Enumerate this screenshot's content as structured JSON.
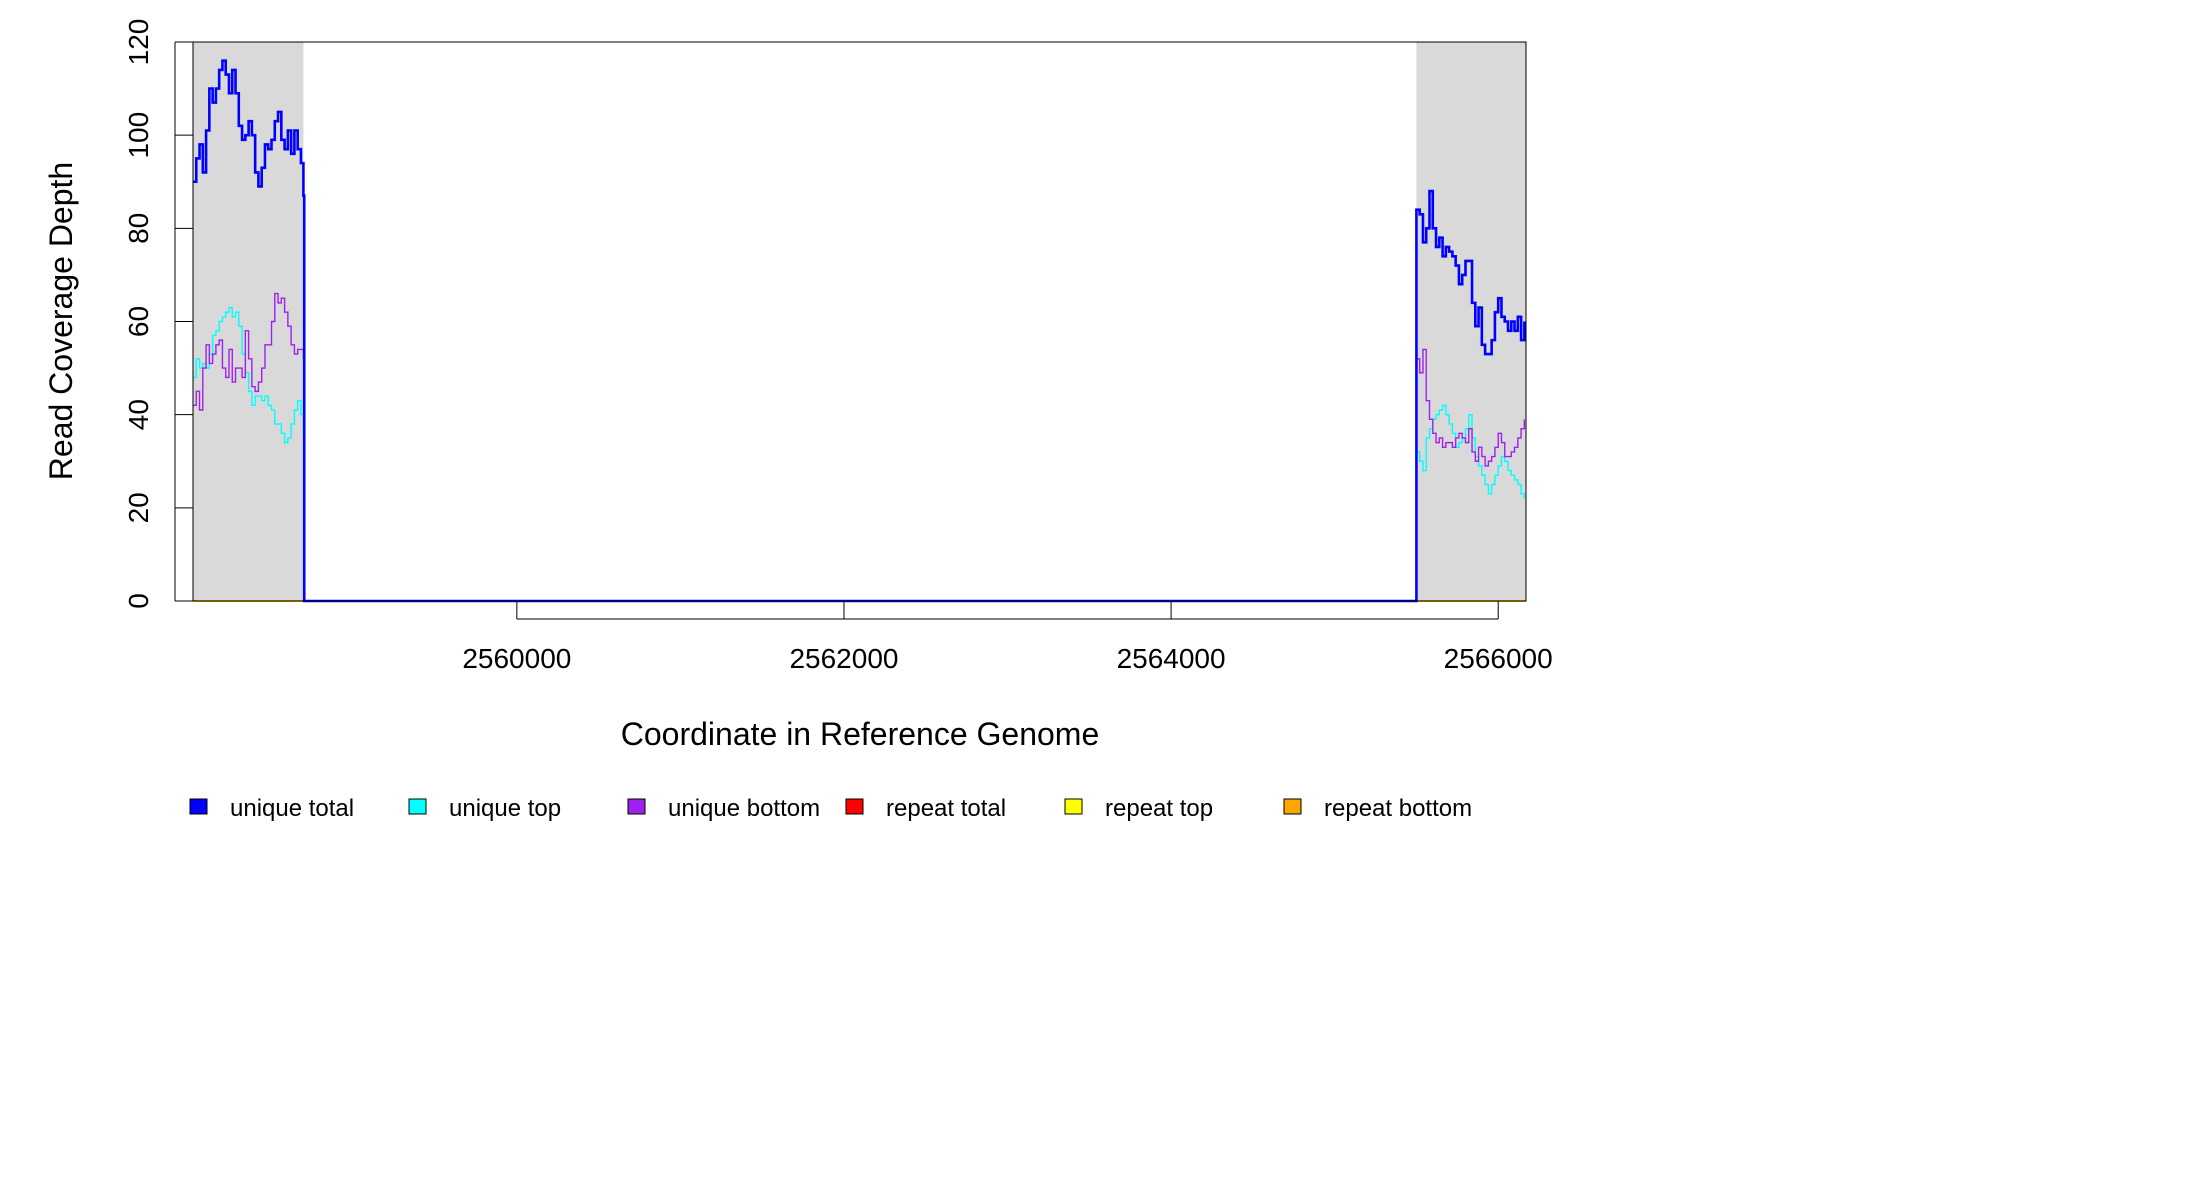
{
  "chart_data": {
    "type": "line",
    "title": "",
    "xlabel": "Coordinate in Reference Genome",
    "ylabel": "Read Coverage Depth",
    "xlim": [
      2558020,
      2566170
    ],
    "ylim": [
      0,
      120
    ],
    "x_ticks": [
      2560000,
      2562000,
      2564000,
      2566000
    ],
    "x_tick_labels": [
      "2560000",
      "2562000",
      "2564000",
      "2566000"
    ],
    "y_ticks": [
      0,
      20,
      40,
      60,
      80,
      100,
      120
    ],
    "y_tick_labels": [
      "0",
      "20",
      "40",
      "60",
      "80",
      "100",
      "120"
    ],
    "highlight_regions": [
      [
        2558020,
        2558695
      ],
      [
        2565500,
        2566170
      ]
    ],
    "highlight_color": "#d9d9d9",
    "series": [
      {
        "name": "unique total",
        "color": "#0000ff",
        "x": [
          2558020,
          2558040,
          2558060,
          2558080,
          2558100,
          2558120,
          2558140,
          2558160,
          2558180,
          2558200,
          2558220,
          2558240,
          2558260,
          2558280,
          2558300,
          2558320,
          2558340,
          2558360,
          2558380,
          2558400,
          2558420,
          2558440,
          2558460,
          2558480,
          2558500,
          2558520,
          2558540,
          2558560,
          2558580,
          2558600,
          2558620,
          2558640,
          2558660,
          2558680,
          2558695,
          2558700,
          2565490,
          2565500,
          2565520,
          2565540,
          2565560,
          2565580,
          2565600,
          2565620,
          2565640,
          2565660,
          2565680,
          2565700,
          2565720,
          2565740,
          2565760,
          2565780,
          2565800,
          2565820,
          2565840,
          2565860,
          2565880,
          2565900,
          2565920,
          2565940,
          2565960,
          2565980,
          2566000,
          2566020,
          2566040,
          2566060,
          2566080,
          2566100,
          2566120,
          2566140,
          2566160
        ],
        "values": [
          90,
          95,
          98,
          92,
          101,
          110,
          107,
          110,
          114,
          116,
          113,
          109,
          114,
          109,
          102,
          99,
          100,
          103,
          100,
          92,
          89,
          93,
          98,
          97,
          99,
          103,
          105,
          99,
          97,
          101,
          96,
          101,
          97,
          94,
          87,
          0,
          0,
          84,
          83,
          77,
          80,
          88,
          80,
          76,
          78,
          74,
          76,
          75,
          74,
          72,
          68,
          70,
          73,
          73,
          64,
          59,
          63,
          55,
          53,
          53,
          56,
          62,
          65,
          61,
          60,
          58,
          60,
          58,
          61,
          56,
          60
        ]
      },
      {
        "name": "unique top",
        "color": "#00ffff",
        "x": [
          2558020,
          2558040,
          2558060,
          2558080,
          2558100,
          2558120,
          2558140,
          2558160,
          2558180,
          2558200,
          2558220,
          2558240,
          2558260,
          2558280,
          2558300,
          2558320,
          2558340,
          2558360,
          2558380,
          2558400,
          2558420,
          2558440,
          2558460,
          2558480,
          2558500,
          2558520,
          2558540,
          2558560,
          2558580,
          2558600,
          2558620,
          2558640,
          2558660,
          2558680,
          2558695,
          2558700,
          2565490,
          2565500,
          2565520,
          2565540,
          2565560,
          2565580,
          2565600,
          2565620,
          2565640,
          2565660,
          2565680,
          2565700,
          2565720,
          2565740,
          2565760,
          2565780,
          2565800,
          2565820,
          2565840,
          2565860,
          2565880,
          2565900,
          2565920,
          2565940,
          2565960,
          2565980,
          2566000,
          2566020,
          2566040,
          2566060,
          2566080,
          2566100,
          2566120,
          2566140,
          2566160
        ],
        "values": [
          48,
          52,
          50,
          51,
          50,
          53,
          57,
          58,
          60,
          61,
          62,
          63,
          61,
          62,
          59,
          53,
          49,
          45,
          42,
          44,
          44,
          43,
          44,
          42,
          41,
          38,
          38,
          36,
          34,
          35,
          38,
          41,
          43,
          40,
          36,
          0,
          0,
          32,
          30,
          28,
          35,
          37,
          39,
          40,
          41,
          42,
          40,
          38,
          36,
          33,
          34,
          35,
          37,
          40,
          35,
          31,
          29,
          27,
          25,
          23,
          25,
          27,
          29,
          31,
          30,
          28,
          27,
          26,
          25,
          23,
          22
        ]
      },
      {
        "name": "unique bottom",
        "color": "#a020f0",
        "x": [
          2558020,
          2558040,
          2558060,
          2558080,
          2558100,
          2558120,
          2558140,
          2558160,
          2558180,
          2558200,
          2558220,
          2558240,
          2558260,
          2558280,
          2558300,
          2558320,
          2558340,
          2558360,
          2558380,
          2558400,
          2558420,
          2558440,
          2558460,
          2558480,
          2558500,
          2558520,
          2558540,
          2558560,
          2558580,
          2558600,
          2558620,
          2558640,
          2558660,
          2558680,
          2558695,
          2558700,
          2565490,
          2565500,
          2565520,
          2565540,
          2565560,
          2565580,
          2565600,
          2565620,
          2565640,
          2565660,
          2565680,
          2565700,
          2565720,
          2565740,
          2565760,
          2565780,
          2565800,
          2565820,
          2565840,
          2565860,
          2565880,
          2565900,
          2565920,
          2565940,
          2565960,
          2565980,
          2566000,
          2566020,
          2566040,
          2566060,
          2566080,
          2566100,
          2566120,
          2566140,
          2566160
        ],
        "values": [
          42,
          45,
          41,
          50,
          55,
          51,
          53,
          55,
          56,
          50,
          48,
          54,
          47,
          50,
          50,
          48,
          58,
          52,
          46,
          45,
          47,
          50,
          55,
          55,
          60,
          66,
          64,
          65,
          62,
          59,
          55,
          53,
          54,
          54,
          52,
          0,
          0,
          52,
          49,
          54,
          43,
          39,
          36,
          34,
          35,
          33,
          34,
          34,
          33,
          35,
          36,
          35,
          34,
          37,
          32,
          30,
          33,
          31,
          29,
          30,
          31,
          33,
          36,
          34,
          31,
          31,
          32,
          33,
          35,
          37,
          39
        ]
      },
      {
        "name": "repeat total",
        "color": "#ff0000",
        "x": [
          2558020,
          2566170
        ],
        "values": [
          0,
          0
        ]
      },
      {
        "name": "repeat top",
        "color": "#ffff00",
        "x": [
          2558020,
          2566170
        ],
        "values": [
          0,
          0
        ]
      },
      {
        "name": "repeat bottom",
        "color": "#ffa500",
        "x": [
          2558020,
          2566170
        ],
        "values": [
          0,
          0
        ]
      }
    ],
    "legend": {
      "placement": "bottom",
      "entries": [
        {
          "label": "unique total",
          "color": "#0000ff"
        },
        {
          "label": "unique top",
          "color": "#00ffff"
        },
        {
          "label": "unique bottom",
          "color": "#a020f0"
        },
        {
          "label": "repeat total",
          "color": "#ff0000"
        },
        {
          "label": "repeat top",
          "color": "#ffff00"
        },
        {
          "label": "repeat bottom",
          "color": "#ffa500"
        }
      ]
    }
  }
}
